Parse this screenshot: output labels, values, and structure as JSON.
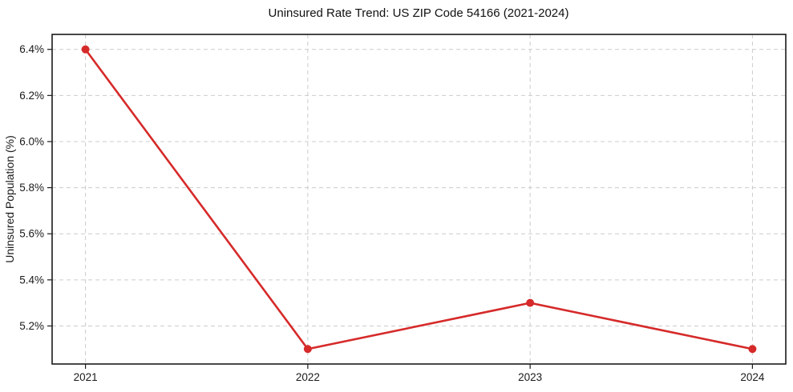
{
  "chart_data": {
    "type": "line",
    "title": "Uninsured Rate Trend: US ZIP Code 54166 (2021-2024)",
    "xlabel": "",
    "ylabel": "Uninsured Population (%)",
    "x": [
      2021,
      2022,
      2023,
      2024
    ],
    "x_tick_labels": [
      "2021",
      "2022",
      "2023",
      "2024"
    ],
    "series": [
      {
        "name": "uninsured-rate",
        "values": [
          6.4,
          5.1,
          5.3,
          5.1
        ]
      }
    ],
    "y_ticks": [
      5.2,
      5.4,
      5.6,
      5.8,
      6.0,
      6.2,
      6.4
    ],
    "y_tick_labels": [
      "5.2%",
      "5.4%",
      "5.6%",
      "5.8%",
      "6.0%",
      "6.2%",
      "6.4%"
    ],
    "ylim": [
      5.035,
      6.465
    ],
    "xlim": [
      2020.85,
      2024.15
    ],
    "grid": "dashed-both",
    "legend_position": "none",
    "colors": {
      "line": "#d62a2a",
      "marker": "#d62a2a",
      "grid": "#cccccc",
      "axis": "#1a1a1a",
      "text": "#1a1a1a",
      "background": "#ffffff"
    }
  }
}
